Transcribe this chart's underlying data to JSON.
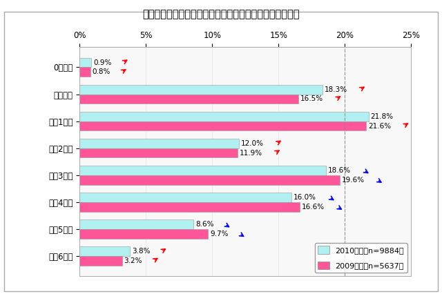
{
  "title": "》図1《インターネットを利用開始した学年（単一回答）",
  "title_raw": "【図１】インターネットを利用開始した学年（単一回答）",
  "categories": [
    "0～２歳",
    "３～５歳",
    "小学1年生",
    "小学2年生",
    "小学3年生",
    "小学4年生",
    "小学5年生",
    "小学6年生"
  ],
  "values_2010": [
    0.9,
    18.3,
    21.8,
    12.0,
    18.6,
    16.0,
    8.6,
    3.8
  ],
  "values_2009": [
    0.8,
    16.5,
    21.6,
    11.9,
    19.6,
    16.6,
    9.7,
    3.2
  ],
  "labels_2010": [
    "0.9%",
    "18.3%",
    "21.8%",
    "12.0%",
    "18.6%",
    "16.0%",
    "8.6%",
    "3.8%"
  ],
  "labels_2009": [
    "0.8%",
    "16.5%",
    "21.6%",
    "11.9%",
    "19.6%",
    "16.6%",
    "9.7%",
    "3.2%"
  ],
  "arrows_2010": [
    "up_red",
    "up_red",
    "up_red",
    "up_red",
    "down_blue",
    "down_blue",
    "down_blue",
    "up_red"
  ],
  "arrows_2009": [
    "up_red",
    "up_red",
    "up_red",
    "up_red",
    "down_blue",
    "down_blue",
    "down_blue",
    "up_red"
  ],
  "color_2010": "#b0f0f0",
  "color_2009": "#ff5599",
  "legend_2010": "2010年度（n=9884）",
  "legend_2009": "2009年度（n=5637）",
  "xlim": [
    0,
    25
  ],
  "xticks": [
    0,
    5,
    10,
    15,
    20,
    25
  ],
  "xticklabels": [
    "0%",
    "5%",
    "10%",
    "15%",
    "20%",
    "25%"
  ],
  "bar_height": 0.35,
  "background_color": "#f0f0f0",
  "plot_bg_color": "#f8f8f8",
  "outer_background": "#ffffff",
  "dashed_line_x": 20,
  "title_fontsize": 10.5,
  "label_fontsize": 7.5,
  "tick_fontsize": 8.5
}
